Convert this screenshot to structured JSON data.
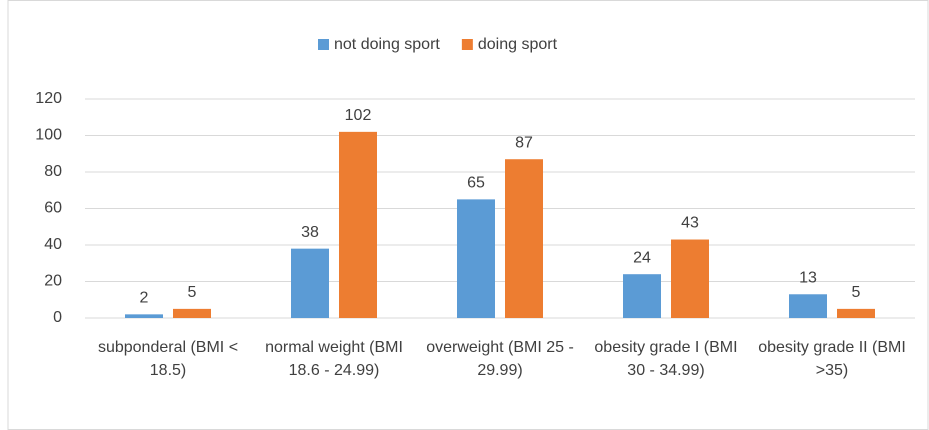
{
  "chart_data": {
    "type": "bar",
    "categories": [
      "subponderal (BMI < 18.5)",
      "normal weight (BMI 18.6 - 24.99)",
      "overweight (BMI 25 - 29.99)",
      "obesity grade I (BMI 30 - 34.99)",
      "obesity grade II (BMI >35)"
    ],
    "series": [
      {
        "name": "not doing sport",
        "color": "#5b9bd5",
        "values": [
          2,
          38,
          65,
          24,
          13
        ]
      },
      {
        "name": "doing sport",
        "color": "#ed7d31",
        "values": [
          5,
          102,
          87,
          43,
          5
        ]
      }
    ],
    "ylim": [
      0,
      120
    ],
    "yticks": [
      0,
      20,
      40,
      60,
      80,
      100,
      120
    ],
    "grid": true,
    "legend": "top"
  }
}
